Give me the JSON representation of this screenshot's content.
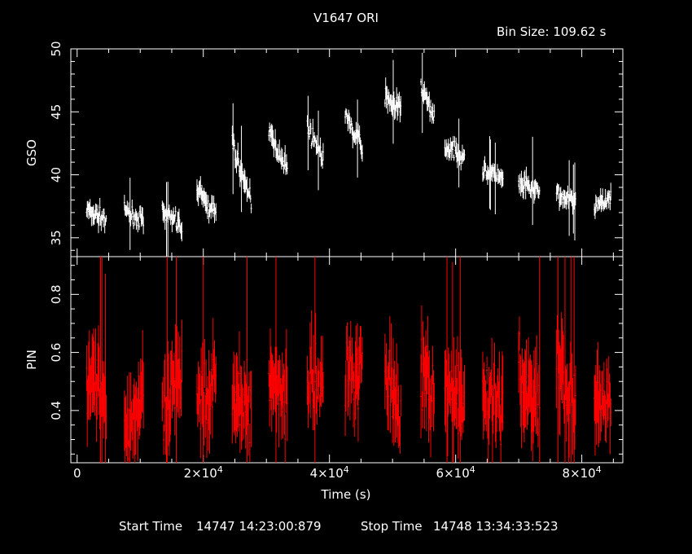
{
  "title": "V1647 ORI",
  "bin_label": "Bin Size: 109.62 s",
  "footer": {
    "start_label": "Start Time",
    "start_value": "14747 14:23:00:879",
    "stop_label": "Stop Time",
    "stop_value": "14748 13:34:33:523"
  },
  "colors": {
    "axes": "#ffffff",
    "gso": "#ffffff",
    "pin": "#ff0000",
    "background": "#000000"
  },
  "chart_data": [
    {
      "type": "scatter",
      "panel": "top",
      "ylabel": "GSO",
      "xlabel": "",
      "xlim": [
        -1000,
        86500
      ],
      "ylim": [
        33.5,
        50
      ],
      "y_ticks": [
        "35",
        "40",
        "45",
        "50"
      ],
      "error_bars": true,
      "series": [
        {
          "color": "#ffffff",
          "segments": [
            {
              "x": [
                1500,
                4600
              ],
              "y": [
                37.2,
                36.4
              ],
              "spread": 1.6
            },
            {
              "x": [
                7500,
                10500
              ],
              "y": [
                37.0,
                36.4
              ],
              "spread": 1.5
            },
            {
              "x": [
                13500,
                16600
              ],
              "y": [
                36.9,
                35.9
              ],
              "spread": 1.7
            },
            {
              "x": [
                19000,
                22000
              ],
              "y": [
                38.8,
                36.8
              ],
              "spread": 1.8
            },
            {
              "x": [
                24600,
                27600
              ],
              "y": [
                42.3,
                38.0
              ],
              "spread": 2.0
            },
            {
              "x": [
                30400,
                33300
              ],
              "y": [
                43.3,
                40.6
              ],
              "spread": 1.8
            },
            {
              "x": [
                36500,
                39000
              ],
              "y": [
                43.8,
                41.3
              ],
              "spread": 1.6
            },
            {
              "x": [
                42500,
                45200
              ],
              "y": [
                44.5,
                42.2
              ],
              "spread": 1.7
            },
            {
              "x": [
                48800,
                51300
              ],
              "y": [
                46.3,
                45.2
              ],
              "spread": 1.8
            },
            {
              "x": [
                54500,
                56600
              ],
              "y": [
                46.9,
                44.6
              ],
              "spread": 1.7
            },
            {
              "x": [
                58300,
                61400
              ],
              "y": [
                42.2,
                41.6
              ],
              "spread": 1.6
            },
            {
              "x": [
                64300,
                67500
              ],
              "y": [
                40.3,
                39.6
              ],
              "spread": 1.6
            },
            {
              "x": [
                70000,
                73300
              ],
              "y": [
                39.2,
                38.6
              ],
              "spread": 1.8
            },
            {
              "x": [
                76000,
                79000
              ],
              "y": [
                38.5,
                37.8
              ],
              "spread": 1.6
            },
            {
              "x": [
                82000,
                84600
              ],
              "y": [
                37.5,
                38.4
              ],
              "spread": 1.5
            }
          ]
        }
      ]
    },
    {
      "type": "scatter",
      "panel": "bottom",
      "ylabel": "PIN",
      "xlabel": "Time (s)",
      "xlim": [
        -1000,
        86500
      ],
      "ylim": [
        0.22,
        0.93
      ],
      "y_ticks": [
        "0.4",
        "0.6",
        "0.8"
      ],
      "x_ticks": [
        {
          "value": 0,
          "base": "0",
          "exp": ""
        },
        {
          "value": 20000,
          "base": "2×10",
          "exp": "4"
        },
        {
          "value": 40000,
          "base": "4×10",
          "exp": "4"
        },
        {
          "value": 60000,
          "base": "6×10",
          "exp": "4"
        },
        {
          "value": 80000,
          "base": "8×10",
          "exp": "4"
        }
      ],
      "error_bars": true,
      "series": [
        {
          "color": "#ff0000",
          "segments": [
            {
              "x": [
                1500,
                4600
              ],
              "y": [
                0.55,
                0.4
              ],
              "spread": 0.3
            },
            {
              "x": [
                7500,
                10500
              ],
              "y": [
                0.33,
                0.45
              ],
              "spread": 0.3
            },
            {
              "x": [
                13500,
                16600
              ],
              "y": [
                0.32,
                0.55
              ],
              "spread": 0.32
            },
            {
              "x": [
                19000,
                22000
              ],
              "y": [
                0.45,
                0.5
              ],
              "spread": 0.3
            },
            {
              "x": [
                24600,
                27600
              ],
              "y": [
                0.45,
                0.4
              ],
              "spread": 0.3
            },
            {
              "x": [
                30400,
                33300
              ],
              "y": [
                0.5,
                0.45
              ],
              "spread": 0.3
            },
            {
              "x": [
                36500,
                39000
              ],
              "y": [
                0.52,
                0.48
              ],
              "spread": 0.26
            },
            {
              "x": [
                42500,
                45200
              ],
              "y": [
                0.55,
                0.52
              ],
              "spread": 0.3
            },
            {
              "x": [
                48800,
                51300
              ],
              "y": [
                0.55,
                0.4
              ],
              "spread": 0.34
            },
            {
              "x": [
                54500,
                56600
              ],
              "y": [
                0.55,
                0.45
              ],
              "spread": 0.3
            },
            {
              "x": [
                58300,
                61400
              ],
              "y": [
                0.45,
                0.4
              ],
              "spread": 0.3
            },
            {
              "x": [
                64300,
                67500
              ],
              "y": [
                0.45,
                0.4
              ],
              "spread": 0.3
            },
            {
              "x": [
                70000,
                73300
              ],
              "y": [
                0.5,
                0.42
              ],
              "spread": 0.32
            },
            {
              "x": [
                76000,
                79000
              ],
              "y": [
                0.55,
                0.4
              ],
              "spread": 0.32
            },
            {
              "x": [
                82000,
                84600
              ],
              "y": [
                0.4,
                0.45
              ],
              "spread": 0.28
            }
          ]
        }
      ]
    }
  ]
}
